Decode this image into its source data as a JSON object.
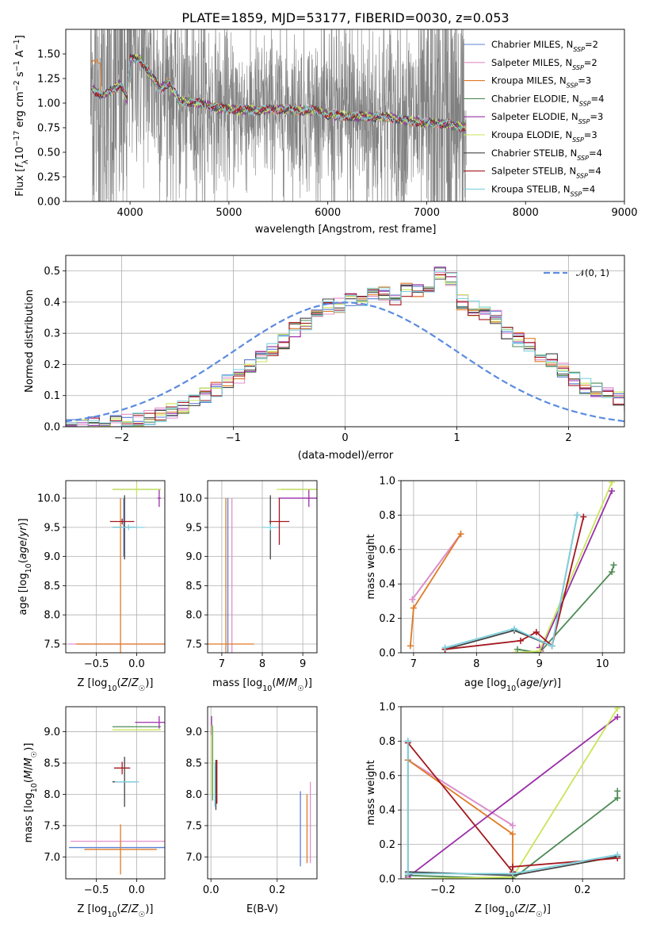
{
  "figure_title": "PLATE=1859, MJD=53177, FIBERID=0030, z=0.053",
  "colors": {
    "Chabrier MILES": "#5b7fd6",
    "Salpeter MILES": "#e48fc9",
    "Kroupa MILES": "#e07a25",
    "Chabrier ELODIE": "#4e8a55",
    "Salpeter ELODIE": "#9a2fa8",
    "Kroupa ELODIE": "#c9e55a",
    "Chabrier STELIB": "#444444",
    "Salpeter STELIB": "#a5191f",
    "Kroupa STELIB": "#7fd3e0",
    "data": "#808080",
    "gaussian": "#5b8be0",
    "grid": "#b0b0b0"
  },
  "models": [
    {
      "name": "Chabrier MILES",
      "nssp": "2"
    },
    {
      "name": "Salpeter MILES",
      "nssp": "2"
    },
    {
      "name": "Kroupa MILES",
      "nssp": "3"
    },
    {
      "name": "Chabrier ELODIE",
      "nssp": "4"
    },
    {
      "name": "Salpeter ELODIE",
      "nssp": "3"
    },
    {
      "name": "Kroupa ELODIE",
      "nssp": "3"
    },
    {
      "name": "Chabrier STELIB",
      "nssp": "4"
    },
    {
      "name": "Salpeter STELIB",
      "nssp": "4"
    },
    {
      "name": "Kroupa STELIB",
      "nssp": "4"
    }
  ],
  "chart_data": [
    {
      "id": "spectrum",
      "type": "line",
      "title": "PLATE=1859, MJD=53177, FIBERID=0030, z=0.053",
      "xlabel": "wavelength [Angstrom, rest frame]",
      "ylabel": "Flux [f_λ 10^-17 erg cm^-2 s^-1 A^-1]",
      "xlim": [
        3350,
        9000
      ],
      "ylim": [
        0,
        1.75
      ],
      "xticks": [
        4000,
        5000,
        6000,
        7000,
        8000,
        9000
      ],
      "yticks": [
        0.0,
        0.25,
        0.5,
        0.75,
        1.0,
        1.25,
        1.5
      ],
      "data_range": [
        3600,
        7400
      ],
      "model_continuum": {
        "x": [
          3610,
          3700,
          3800,
          3900,
          3970,
          4000,
          4100,
          4200,
          4300,
          4400,
          4500,
          4700,
          4900,
          5100,
          5300,
          5500,
          5700,
          5900,
          6000,
          6200,
          6400,
          6600,
          6800,
          7000,
          7200,
          7400
        ],
        "y": [
          1.15,
          1.08,
          1.12,
          1.2,
          1.05,
          1.45,
          1.45,
          1.3,
          1.15,
          1.2,
          1.02,
          1.0,
          0.95,
          0.93,
          0.93,
          0.94,
          0.93,
          0.92,
          0.88,
          0.87,
          0.86,
          0.86,
          0.82,
          0.8,
          0.79,
          0.75
        ]
      },
      "legend": "upper right"
    },
    {
      "id": "residuals",
      "type": "histogram",
      "xlabel": "(data-model)/error",
      "ylabel": "Normed distribution",
      "xlim": [
        -2.5,
        2.5
      ],
      "ylim": [
        0,
        0.55
      ],
      "xticks": [
        -2,
        -1,
        0,
        1,
        2
      ],
      "yticks": [
        0.0,
        0.1,
        0.2,
        0.3,
        0.4,
        0.5
      ],
      "bin_width": 0.1,
      "bin_start": -2.5,
      "reference_density": [
        0.005,
        0.005,
        0.008,
        0.01,
        0.012,
        0.016,
        0.022,
        0.03,
        0.04,
        0.05,
        0.065,
        0.08,
        0.1,
        0.12,
        0.145,
        0.165,
        0.2,
        0.225,
        0.25,
        0.275,
        0.31,
        0.33,
        0.355,
        0.385,
        0.39,
        0.405,
        0.4,
        0.42,
        0.43,
        0.41,
        0.44,
        0.44,
        0.45,
        0.49,
        0.47,
        0.4,
        0.38,
        0.36,
        0.35,
        0.3,
        0.28,
        0.26,
        0.23,
        0.21,
        0.18,
        0.15,
        0.13,
        0.12,
        0.1,
        0.09,
        0.075,
        0.065,
        0.05,
        0.04,
        0.035,
        0.03,
        0.025,
        0.025,
        0.02,
        0.018
      ],
      "gaussian": {
        "label": "𝒩(0, 1)",
        "mean": 0,
        "sigma": 1
      },
      "legend": "upper right"
    },
    {
      "id": "age-vs-z",
      "type": "errorbar",
      "xlabel": "Z [log10(Z/Z☉)]",
      "ylabel": "age  [log10(age/yr)]",
      "xlim": [
        -0.88,
        0.35
      ],
      "ylim": [
        7.35,
        10.3
      ],
      "xticks": [
        -0.5,
        0.0
      ],
      "yticks": [
        7.5,
        8.0,
        8.5,
        9.0,
        9.5,
        10.0
      ],
      "points": [
        {
          "model": "Chabrier MILES",
          "x": -0.16,
          "y": 9.5,
          "xerr": 0.14,
          "yerr": 0.5
        },
        {
          "model": "Salpeter MILES",
          "x": -0.17,
          "y": 7.5,
          "xerr": 0.68,
          "yerr": 0.0
        },
        {
          "model": "Kroupa MILES",
          "x": -0.2,
          "y": 7.5,
          "xerr": 0.55,
          "yerr": 2.5
        },
        {
          "model": "Chabrier ELODIE",
          "x": 0.0,
          "y": 10.15,
          "xerr": 0.3,
          "yerr": 0.0
        },
        {
          "model": "Salpeter ELODIE",
          "x": 0.28,
          "y": 10.0,
          "xerr": 0.02,
          "yerr": 0.15
        },
        {
          "model": "Kroupa ELODIE",
          "x": 0.0,
          "y": 10.15,
          "xerr": 0.3,
          "yerr": 0.1
        },
        {
          "model": "Chabrier STELIB",
          "x": -0.15,
          "y": 9.5,
          "xerr": 0.15,
          "yerr": 0.55
        },
        {
          "model": "Salpeter STELIB",
          "x": -0.18,
          "y": 9.6,
          "xerr": 0.15,
          "yerr": 0.05
        },
        {
          "model": "Kroupa STELIB",
          "x": -0.1,
          "y": 9.5,
          "xerr": 0.2,
          "yerr": 0.05
        }
      ]
    },
    {
      "id": "age-vs-mass",
      "type": "errorbar",
      "xlabel": "mass [log10(M/M☉)]",
      "ylabel": "",
      "xlim": [
        6.65,
        9.35
      ],
      "ylim": [
        7.35,
        10.3
      ],
      "xticks": [
        7,
        8,
        9
      ],
      "yticks": [
        7.5,
        8.0,
        8.5,
        9.0,
        9.5,
        10.0
      ],
      "points": [
        {
          "model": "Chabrier MILES",
          "x": 7.15,
          "y": 7.5,
          "xerr": 0.0,
          "yerr": 2.5
        },
        {
          "model": "Salpeter MILES",
          "x": 7.25,
          "y": 7.5,
          "xerr": 0.0,
          "yerr": 2.5
        },
        {
          "model": "Kroupa MILES",
          "x": 7.1,
          "y": 7.5,
          "xerr": 0.7,
          "yerr": 2.5
        },
        {
          "model": "Chabrier ELODIE",
          "x": 9.05,
          "y": 10.15,
          "xerr": 0.0,
          "yerr": 0.0
        },
        {
          "model": "Salpeter ELODIE",
          "x": 9.15,
          "y": 10.0,
          "xerr": 0.75,
          "yerr": 0.15
        },
        {
          "model": "Kroupa ELODIE",
          "x": 9.05,
          "y": 10.15,
          "xerr": 0.7,
          "yerr": 0.0
        },
        {
          "model": "Chabrier STELIB",
          "x": 8.2,
          "y": 9.5,
          "xerr": 0.0,
          "yerr": 0.55
        },
        {
          "model": "Salpeter STELIB",
          "x": 8.42,
          "y": 9.6,
          "xerr": 0.25,
          "yerr": 0.4
        },
        {
          "model": "Kroupa STELIB",
          "x": 8.2,
          "y": 9.5,
          "xerr": 0.2,
          "yerr": 0.05
        }
      ]
    },
    {
      "id": "weight-vs-age",
      "type": "line",
      "xlabel": "age  [log10(age/yr)]",
      "ylabel": "mass weight",
      "xlim": [
        6.8,
        10.35
      ],
      "ylim": [
        0,
        1
      ],
      "xticks": [
        7,
        8,
        9,
        10
      ],
      "yticks": [
        0.0,
        0.2,
        0.4,
        0.6,
        0.8,
        1.0
      ],
      "series": [
        {
          "model": "Chabrier MILES",
          "x": [
            6.98,
            7.75
          ],
          "y": [
            0.31,
            0.69
          ]
        },
        {
          "model": "Salpeter MILES",
          "x": [
            6.98,
            7.75
          ],
          "y": [
            0.31,
            0.69
          ]
        },
        {
          "model": "Kroupa MILES",
          "x": [
            6.95,
            7.0,
            7.75
          ],
          "y": [
            0.04,
            0.26,
            0.69
          ]
        },
        {
          "model": "Chabrier ELODIE",
          "x": [
            8.65,
            9.0,
            10.15,
            10.18
          ],
          "y": [
            0.02,
            0.0,
            0.47,
            0.51
          ]
        },
        {
          "model": "Salpeter ELODIE",
          "x": [
            9.0,
            9.02,
            10.15
          ],
          "y": [
            0.03,
            0.01,
            0.94
          ]
        },
        {
          "model": "Kroupa ELODIE",
          "x": [
            8.62,
            9.0,
            10.15
          ],
          "y": [
            0.0,
            0.01,
            0.99
          ]
        },
        {
          "model": "Chabrier STELIB",
          "x": [
            7.5,
            8.6,
            9.2,
            9.6
          ],
          "y": [
            0.02,
            0.13,
            0.04,
            0.8
          ]
        },
        {
          "model": "Salpeter STELIB",
          "x": [
            7.5,
            8.7,
            8.95,
            9.2,
            9.7
          ],
          "y": [
            0.02,
            0.07,
            0.12,
            0.04,
            0.79
          ]
        },
        {
          "model": "Kroupa STELIB",
          "x": [
            7.5,
            8.6,
            9.2,
            9.6
          ],
          "y": [
            0.03,
            0.14,
            0.04,
            0.8
          ]
        }
      ]
    },
    {
      "id": "mass-vs-z",
      "type": "errorbar",
      "xlabel": "Z [log10(Z/Z☉)]",
      "ylabel": "mass [log10(M/M☉)]",
      "xlim": [
        -0.88,
        0.35
      ],
      "ylim": [
        6.65,
        9.4
      ],
      "xticks": [
        -0.5,
        0.0
      ],
      "yticks": [
        7.0,
        7.5,
        8.0,
        8.5,
        9.0
      ],
      "points": [
        {
          "model": "Chabrier MILES",
          "x": -0.16,
          "y": 7.15,
          "xerr": 0.68,
          "yerr": 0.0
        },
        {
          "model": "Salpeter MILES",
          "x": -0.2,
          "y": 7.25,
          "xerr": 0.62,
          "yerr": 0.0
        },
        {
          "model": "Kroupa MILES",
          "x": -0.2,
          "y": 7.12,
          "xerr": 0.45,
          "yerr": 0.4
        },
        {
          "model": "Chabrier ELODIE",
          "x": 0.0,
          "y": 9.08,
          "xerr": 0.3,
          "yerr": 0.0
        },
        {
          "model": "Salpeter ELODIE",
          "x": 0.28,
          "y": 9.15,
          "xerr": 0.3,
          "yerr": 0.1
        },
        {
          "model": "Kroupa ELODIE",
          "x": 0.0,
          "y": 9.03,
          "xerr": 0.3,
          "yerr": 0.0
        },
        {
          "model": "Chabrier STELIB",
          "x": -0.15,
          "y": 8.2,
          "xerr": 0.15,
          "yerr": 0.4
        },
        {
          "model": "Salpeter STELIB",
          "x": -0.18,
          "y": 8.42,
          "xerr": 0.1,
          "yerr": 0.1
        },
        {
          "model": "Kroupa STELIB",
          "x": -0.12,
          "y": 8.2,
          "xerr": 0.15,
          "yerr": 0.0
        }
      ]
    },
    {
      "id": "mass-vs-ebv",
      "type": "errorbar",
      "xlabel": "E(B-V)",
      "ylabel": "",
      "xlim": [
        -0.01,
        0.32
      ],
      "ylim": [
        6.65,
        9.4
      ],
      "xticks": [
        0.0,
        0.2
      ],
      "yticks": [
        7.0,
        7.5,
        8.0,
        8.5,
        9.0
      ],
      "points": [
        {
          "model": "Chabrier MILES",
          "x": 0.27,
          "y": 7.45,
          "xerr": 0.0,
          "yerr": 0.6
        },
        {
          "model": "Salpeter MILES",
          "x": 0.3,
          "y": 7.55,
          "xerr": 0.0,
          "yerr": 0.65
        },
        {
          "model": "Kroupa MILES",
          "x": 0.29,
          "y": 7.45,
          "xerr": 0.0,
          "yerr": 0.55
        },
        {
          "model": "Chabrier ELODIE",
          "x": 0.005,
          "y": 8.5,
          "xerr": 0.0,
          "yerr": 0.6
        },
        {
          "model": "Salpeter ELODIE",
          "x": 0.002,
          "y": 9.1,
          "xerr": 0.0,
          "yerr": 0.15
        },
        {
          "model": "Kroupa ELODIE",
          "x": 0.003,
          "y": 8.55,
          "xerr": 0.0,
          "yerr": 0.55
        },
        {
          "model": "Chabrier STELIB",
          "x": 0.015,
          "y": 8.15,
          "xerr": 0.0,
          "yerr": 0.4
        },
        {
          "model": "Salpeter STELIB",
          "x": 0.018,
          "y": 8.2,
          "xerr": 0.0,
          "yerr": 0.35
        },
        {
          "model": "Kroupa STELIB",
          "x": 0.012,
          "y": 8.15,
          "xerr": 0.0,
          "yerr": 0.35
        }
      ]
    },
    {
      "id": "weight-vs-z",
      "type": "line",
      "xlabel": "Z [log10(Z/Z☉)]",
      "ylabel": "mass weight",
      "xlim": [
        -0.32,
        0.32
      ],
      "ylim": [
        0,
        1
      ],
      "xticks": [
        -0.2,
        0.0,
        0.2
      ],
      "yticks": [
        0.0,
        0.2,
        0.4,
        0.6,
        0.8,
        1.0
      ],
      "series": [
        {
          "model": "Chabrier MILES",
          "x": [
            -0.3,
            0.0
          ],
          "y": [
            0.69,
            0.31
          ]
        },
        {
          "model": "Salpeter MILES",
          "x": [
            -0.3,
            0.0
          ],
          "y": [
            0.69,
            0.31
          ]
        },
        {
          "model": "Kroupa MILES",
          "x": [
            -0.3,
            0.0,
            0.0
          ],
          "y": [
            0.69,
            0.26,
            0.04
          ]
        },
        {
          "model": "Chabrier ELODIE",
          "x": [
            -0.3,
            0.0,
            0.3,
            0.3
          ],
          "y": [
            0.02,
            0.0,
            0.47,
            0.51
          ]
        },
        {
          "model": "Salpeter ELODIE",
          "x": [
            -0.3,
            0.3
          ],
          "y": [
            0.01,
            0.94
          ]
        },
        {
          "model": "Kroupa ELODIE",
          "x": [
            -0.3,
            0.0,
            0.3
          ],
          "y": [
            0.0,
            0.01,
            0.99
          ]
        },
        {
          "model": "Chabrier STELIB",
          "x": [
            -0.3,
            -0.3,
            0.0,
            0.3
          ],
          "y": [
            0.8,
            0.04,
            0.02,
            0.13
          ]
        },
        {
          "model": "Salpeter STELIB",
          "x": [
            -0.3,
            0.0,
            0.0,
            0.3
          ],
          "y": [
            0.79,
            0.04,
            0.07,
            0.12
          ]
        },
        {
          "model": "Kroupa STELIB",
          "x": [
            -0.3,
            -0.3,
            0.0,
            0.3
          ],
          "y": [
            0.8,
            0.03,
            0.03,
            0.14
          ]
        }
      ]
    }
  ]
}
